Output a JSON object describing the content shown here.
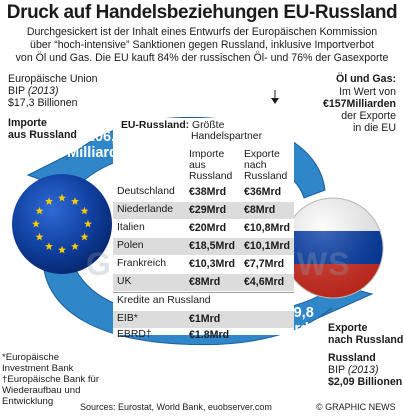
{
  "title": "Druck auf Handelsbeziehungen EU-Russland",
  "subtitle": [
    "Durchgesickert ist der Inhalt eines Entwurfs der Europäischen Kommission",
    "über “hoch-intensive” Sanktionen gegen Russland, inklusive Importverbot",
    "von Öl und Gas. Die EU kauft 84% der russischen Öl- und 76% der Gasexporte"
  ],
  "eu": {
    "name": "Europäische Union",
    "bip_label": "BIP",
    "bip_year": "(2013)",
    "bip_value": "$17,3 Billionen",
    "imports_line1": "Importe",
    "imports_line2": "aus Russland"
  },
  "oil_gas": {
    "head": "Öl und Gas:",
    "line1": "Im Wert von",
    "line2": "€157Milliarden",
    "line3": "der Exporte",
    "line4": "in die EU"
  },
  "imports_arrow": {
    "amount": "€206,5",
    "unit": "Milliarden"
  },
  "exports_arrow": {
    "amount": "€119,8",
    "unit": "Milliarden"
  },
  "russia": {
    "exports_line1": "Exporte",
    "exports_line2": "nach Russland",
    "name": "Russland",
    "bip_label": "BIP",
    "bip_year": "(2013)",
    "bip_value": "$2,09 Billionen"
  },
  "table": {
    "title": "EU-Russland:",
    "title_rest": "Größte",
    "subtitle": "Handelspartner",
    "col_imports": [
      "Importe",
      "aus",
      "Russland"
    ],
    "col_exports": [
      "Exporte",
      "nach",
      "Russland"
    ],
    "credits_label": "Kredite an Russland"
  },
  "chart_data": {
    "type": "table",
    "title": "EU-Russland: Größte Handelspartner",
    "columns": [
      "Importe aus Russland",
      "Exporte nach Russland"
    ],
    "rows": [
      {
        "country": "Deutschland",
        "imports": "€38Mrd",
        "exports": "€36Mrd"
      },
      {
        "country": "Niederlande",
        "imports": "€29Mrd",
        "exports": "€8Mrd"
      },
      {
        "country": "Italien",
        "imports": "€20Mrd",
        "exports": "€10,8Mrd"
      },
      {
        "country": "Polen",
        "imports": "€18,5Mrd",
        "exports": "€10,1Mrd"
      },
      {
        "country": "Frankreich",
        "imports": "€10,3Mrd",
        "exports": "€7,7Mrd"
      },
      {
        "country": "UK",
        "imports": "€8Mrd",
        "exports": "€4,6Mrd"
      }
    ],
    "imports_total_eur_bn": 206.5,
    "exports_total_eur_bn": 119.8,
    "credits": {
      "label": "Kredite an Russland",
      "rows": [
        {
          "lender": "EIB*",
          "value": "€1Mrd"
        },
        {
          "lender": "EBRD†",
          "value": "€1.8Mrd"
        }
      ]
    }
  },
  "footnotes": {
    "eib": [
      "*Europäische",
      "Investment Bank"
    ],
    "ebrd": [
      "†Europäische Bank für",
      "Wiederaufbau und",
      "Entwicklung"
    ]
  },
  "sources": "Sources: Eurostat, World Bank, euobserver.com",
  "credit": "© GRAPHIC NEWS",
  "watermark": "GRAPHIC NEWS",
  "colors": {
    "arrow_blue": "#2f86c9",
    "eu_blue": "#0a3b93",
    "eu_star": "#ffcc00",
    "ru_red": "#d52b1e",
    "ru_blue": "#0039a6"
  }
}
